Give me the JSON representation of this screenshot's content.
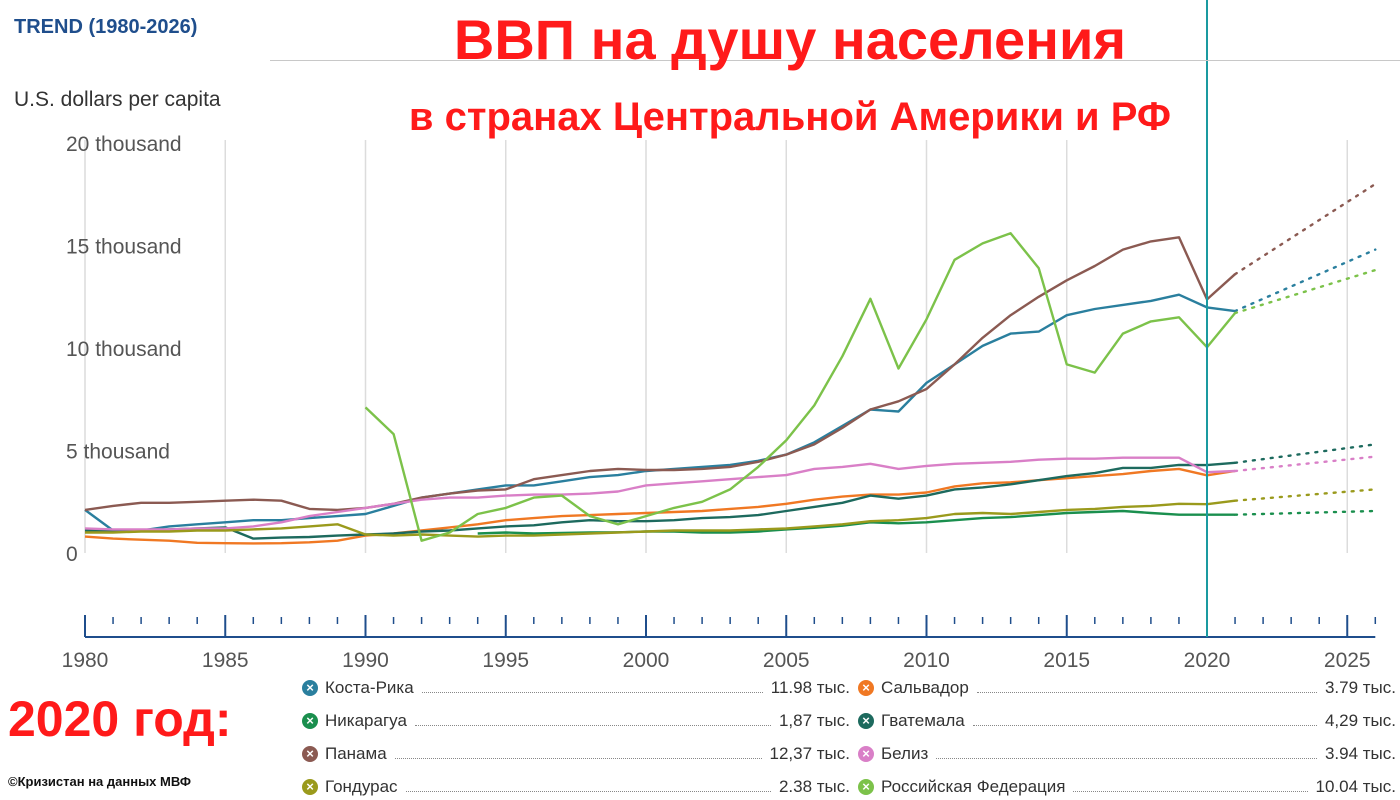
{
  "header": {
    "trend": "TREND (1980-2026)",
    "title": "ВВП на душу населения",
    "subtitle": "в странах Центральной Америки и РФ",
    "ylabel": "U.S. dollars per capita",
    "year_note": "2020 год:",
    "credit": "©Кризистан на данных МВФ"
  },
  "chart_data": {
    "type": "line",
    "ylabel": "U.S. dollars per capita",
    "x_ticks": [
      1980,
      1985,
      1990,
      1995,
      2000,
      2005,
      2010,
      2015,
      2020,
      2025
    ],
    "x_tick_labels": [
      "1980",
      "1985",
      "1990",
      "1995",
      "2000",
      "2005",
      "2010",
      "2015",
      "2020",
      "2025"
    ],
    "y_ticks": [
      0,
      5000,
      10000,
      15000,
      20000
    ],
    "y_tick_labels": [
      "0",
      "5 thousand",
      "10 thousand",
      "15 thousand",
      "20 thousand"
    ],
    "xlim": [
      1980,
      2026
    ],
    "ylim": [
      -3500,
      20000
    ],
    "grid": true,
    "marker_year": 2020,
    "actual_end_year": 2021,
    "projection_end_year": 2026,
    "series": [
      {
        "name": "Коста-Рика",
        "color": "#2a7f9e",
        "value_label": "11.98 тыс.",
        "x": [
          1980,
          1981,
          1982,
          1983,
          1984,
          1985,
          1986,
          1987,
          1988,
          1989,
          1990,
          1991,
          1992,
          1993,
          1994,
          1995,
          1996,
          1997,
          1998,
          1999,
          2000,
          2001,
          2002,
          2003,
          2004,
          2005,
          2006,
          2007,
          2008,
          2009,
          2010,
          2011,
          2012,
          2013,
          2014,
          2015,
          2016,
          2017,
          2018,
          2019,
          2020,
          2021
        ],
        "y": [
          2100,
          1100,
          1100,
          1300,
          1400,
          1500,
          1600,
          1600,
          1700,
          1800,
          1900,
          2300,
          2700,
          2900,
          3100,
          3300,
          3300,
          3500,
          3700,
          3800,
          4000,
          4100,
          4200,
          4300,
          4500,
          4800,
          5400,
          6200,
          7000,
          6900,
          8300,
          9200,
          10100,
          10700,
          10800,
          11600,
          11900,
          12100,
          12300,
          12600,
          11980,
          11800
        ],
        "projection": [
          [
            2021,
            11800
          ],
          [
            2026,
            14800
          ]
        ]
      },
      {
        "name": "Сальвадор",
        "color": "#f07823",
        "value_label": "3.79 тыс.",
        "x": [
          1980,
          1981,
          1982,
          1983,
          1984,
          1985,
          1986,
          1987,
          1988,
          1989,
          1990,
          1991,
          1992,
          1993,
          1994,
          1995,
          1996,
          1997,
          1998,
          1999,
          2000,
          2001,
          2002,
          2003,
          2004,
          2005,
          2006,
          2007,
          2008,
          2009,
          2010,
          2011,
          2012,
          2013,
          2014,
          2015,
          2016,
          2017,
          2018,
          2019,
          2020,
          2021
        ],
        "y": [
          800,
          700,
          650,
          600,
          500,
          480,
          470,
          480,
          520,
          600,
          850,
          950,
          1100,
          1250,
          1400,
          1600,
          1700,
          1800,
          1850,
          1900,
          1950,
          2000,
          2050,
          2150,
          2250,
          2400,
          2600,
          2750,
          2850,
          2850,
          2950,
          3250,
          3400,
          3450,
          3550,
          3650,
          3750,
          3850,
          4000,
          4100,
          3790,
          4000
        ],
        "projection": []
      },
      {
        "name": "Никарагуа",
        "color": "#1a8f4e",
        "value_label": "1,87 тыс.",
        "x": [
          1994,
          1995,
          1996,
          1997,
          1998,
          1999,
          2000,
          2001,
          2002,
          2003,
          2004,
          2005,
          2006,
          2007,
          2008,
          2009,
          2010,
          2011,
          2012,
          2013,
          2014,
          2015,
          2016,
          2017,
          2018,
          2019,
          2020,
          2021
        ],
        "y": [
          950,
          1000,
          950,
          980,
          1000,
          1010,
          1050,
          1050,
          1000,
          1000,
          1050,
          1150,
          1230,
          1330,
          1500,
          1450,
          1500,
          1600,
          1700,
          1750,
          1850,
          1950,
          2000,
          2050,
          1950,
          1870,
          1870,
          1870
        ],
        "projection": [
          [
            2021,
            1870
          ],
          [
            2026,
            2050
          ]
        ]
      },
      {
        "name": "Гватемала",
        "color": "#1d6a5e",
        "value_label": "4,29 тыс.",
        "x": [
          1980,
          1981,
          1982,
          1983,
          1984,
          1985,
          1986,
          1987,
          1988,
          1989,
          1990,
          1991,
          1992,
          1993,
          1994,
          1995,
          1996,
          1997,
          1998,
          1999,
          2000,
          2001,
          2002,
          2003,
          2004,
          2005,
          2006,
          2007,
          2008,
          2009,
          2010,
          2011,
          2012,
          2013,
          2014,
          2015,
          2016,
          2017,
          2018,
          2019,
          2020,
          2021
        ],
        "y": [
          1100,
          1100,
          1100,
          1150,
          1200,
          1250,
          700,
          750,
          780,
          850,
          900,
          950,
          1050,
          1100,
          1200,
          1300,
          1350,
          1500,
          1600,
          1550,
          1550,
          1600,
          1700,
          1750,
          1850,
          2050,
          2250,
          2450,
          2800,
          2650,
          2800,
          3100,
          3200,
          3350,
          3550,
          3750,
          3900,
          4150,
          4150,
          4300,
          4290,
          4400
        ],
        "projection": [
          [
            2021,
            4400
          ],
          [
            2026,
            5300
          ]
        ]
      },
      {
        "name": "Панама",
        "color": "#8b5a52",
        "value_label": "12,37 тыс.",
        "x": [
          1980,
          1981,
          1982,
          1983,
          1984,
          1985,
          1986,
          1987,
          1988,
          1989,
          1990,
          1991,
          1992,
          1993,
          1994,
          1995,
          1996,
          1997,
          1998,
          1999,
          2000,
          2001,
          2002,
          2003,
          2004,
          2005,
          2006,
          2007,
          2008,
          2009,
          2010,
          2011,
          2012,
          2013,
          2014,
          2015,
          2016,
          2017,
          2018,
          2019,
          2020,
          2021
        ],
        "y": [
          2100,
          2300,
          2450,
          2450,
          2500,
          2550,
          2600,
          2550,
          2150,
          2100,
          2200,
          2400,
          2700,
          2900,
          3050,
          3100,
          3600,
          3800,
          4000,
          4100,
          4050,
          4050,
          4100,
          4200,
          4450,
          4800,
          5300,
          6100,
          7000,
          7400,
          8000,
          9200,
          10500,
          11600,
          12500,
          13300,
          14000,
          14800,
          15200,
          15400,
          12370,
          13600
        ],
        "projection": [
          [
            2021,
            13600
          ],
          [
            2026,
            18000
          ]
        ]
      },
      {
        "name": "Белиз",
        "color": "#d97fc7",
        "value_label": "3.94 тыс.",
        "x": [
          1980,
          1981,
          1982,
          1983,
          1984,
          1985,
          1986,
          1987,
          1988,
          1989,
          1990,
          1991,
          1992,
          1993,
          1994,
          1995,
          1996,
          1997,
          1998,
          1999,
          2000,
          2001,
          2002,
          2003,
          2004,
          2005,
          2006,
          2007,
          2008,
          2009,
          2010,
          2011,
          2012,
          2013,
          2014,
          2015,
          2016,
          2017,
          2018,
          2019,
          2020,
          2021
        ],
        "y": [
          1200,
          1150,
          1150,
          1150,
          1200,
          1200,
          1300,
          1500,
          1800,
          2000,
          2200,
          2400,
          2600,
          2700,
          2700,
          2800,
          2850,
          2850,
          2900,
          3000,
          3300,
          3400,
          3500,
          3600,
          3700,
          3800,
          4100,
          4200,
          4350,
          4100,
          4250,
          4350,
          4400,
          4450,
          4550,
          4600,
          4600,
          4650,
          4650,
          4650,
          3940,
          4000
        ],
        "projection": [
          [
            2021,
            4000
          ],
          [
            2026,
            4700
          ]
        ]
      },
      {
        "name": "Гондурас",
        "color": "#9a9a1c",
        "value_label": "2.38 тыс.",
        "x": [
          1980,
          1981,
          1982,
          1983,
          1984,
          1985,
          1986,
          1987,
          1988,
          1989,
          1990,
          1991,
          1992,
          1993,
          1994,
          1995,
          1996,
          1997,
          1998,
          1999,
          2000,
          2001,
          2002,
          2003,
          2004,
          2005,
          2006,
          2007,
          2008,
          2009,
          2010,
          2011,
          2012,
          2013,
          2014,
          2015,
          2016,
          2017,
          2018,
          2019,
          2020,
          2021
        ],
        "y": [
          1000,
          1000,
          1050,
          1050,
          1100,
          1100,
          1150,
          1200,
          1300,
          1400,
          900,
          850,
          900,
          850,
          800,
          850,
          850,
          900,
          950,
          1000,
          1050,
          1100,
          1100,
          1100,
          1150,
          1200,
          1300,
          1400,
          1550,
          1600,
          1700,
          1900,
          1950,
          1900,
          2000,
          2100,
          2150,
          2250,
          2300,
          2400,
          2380,
          2550
        ],
        "projection": [
          [
            2021,
            2550
          ],
          [
            2026,
            3100
          ]
        ]
      },
      {
        "name": "Российская Федерация",
        "color": "#7cc24a",
        "value_label": "10.04 тыс.",
        "x": [
          1990,
          1991,
          1992,
          1993,
          1994,
          1995,
          1996,
          1997,
          1998,
          1999,
          2000,
          2001,
          2002,
          2003,
          2004,
          2005,
          2006,
          2007,
          2008,
          2009,
          2010,
          2011,
          2012,
          2013,
          2014,
          2015,
          2016,
          2017,
          2018,
          2019,
          2020,
          2021
        ],
        "y": [
          7100,
          5800,
          600,
          1000,
          1900,
          2200,
          2700,
          2800,
          1800,
          1400,
          1800,
          2200,
          2500,
          3100,
          4200,
          5500,
          7200,
          9600,
          12400,
          9000,
          11400,
          14300,
          15100,
          15600,
          13900,
          9200,
          8800,
          10700,
          11300,
          11500,
          10040,
          11700
        ],
        "projection": [
          [
            2021,
            11700
          ],
          [
            2026,
            13800
          ]
        ]
      }
    ]
  }
}
